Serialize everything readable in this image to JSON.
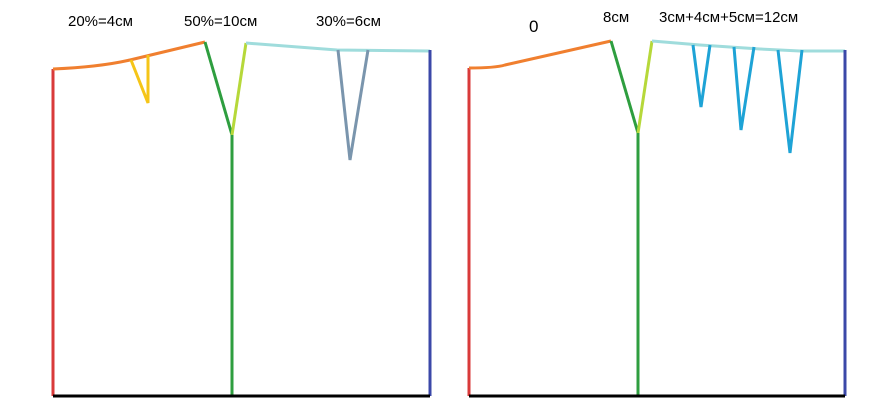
{
  "left_pattern": {
    "labels": {
      "front_dart": "20%=4см",
      "side_seam": "50%=10см",
      "back_dart": "30%=6см"
    }
  },
  "right_pattern": {
    "labels": {
      "front_dart": "0",
      "side_seam": "8см",
      "back_darts": "3см+4см+5см=12см"
    }
  },
  "colors": {
    "front_edge": "#d93a3a",
    "waist_front": "#f07f2f",
    "front_dart": "#f5c518",
    "side_front": "#2e9e3f",
    "side_back": "#b6d83a",
    "waist_back": "#9fdcdc",
    "back_dart_left": "#7a95ad",
    "back_dart_right": "#1ea3d6",
    "back_edge": "#3b48a8",
    "hem": "#000000"
  }
}
